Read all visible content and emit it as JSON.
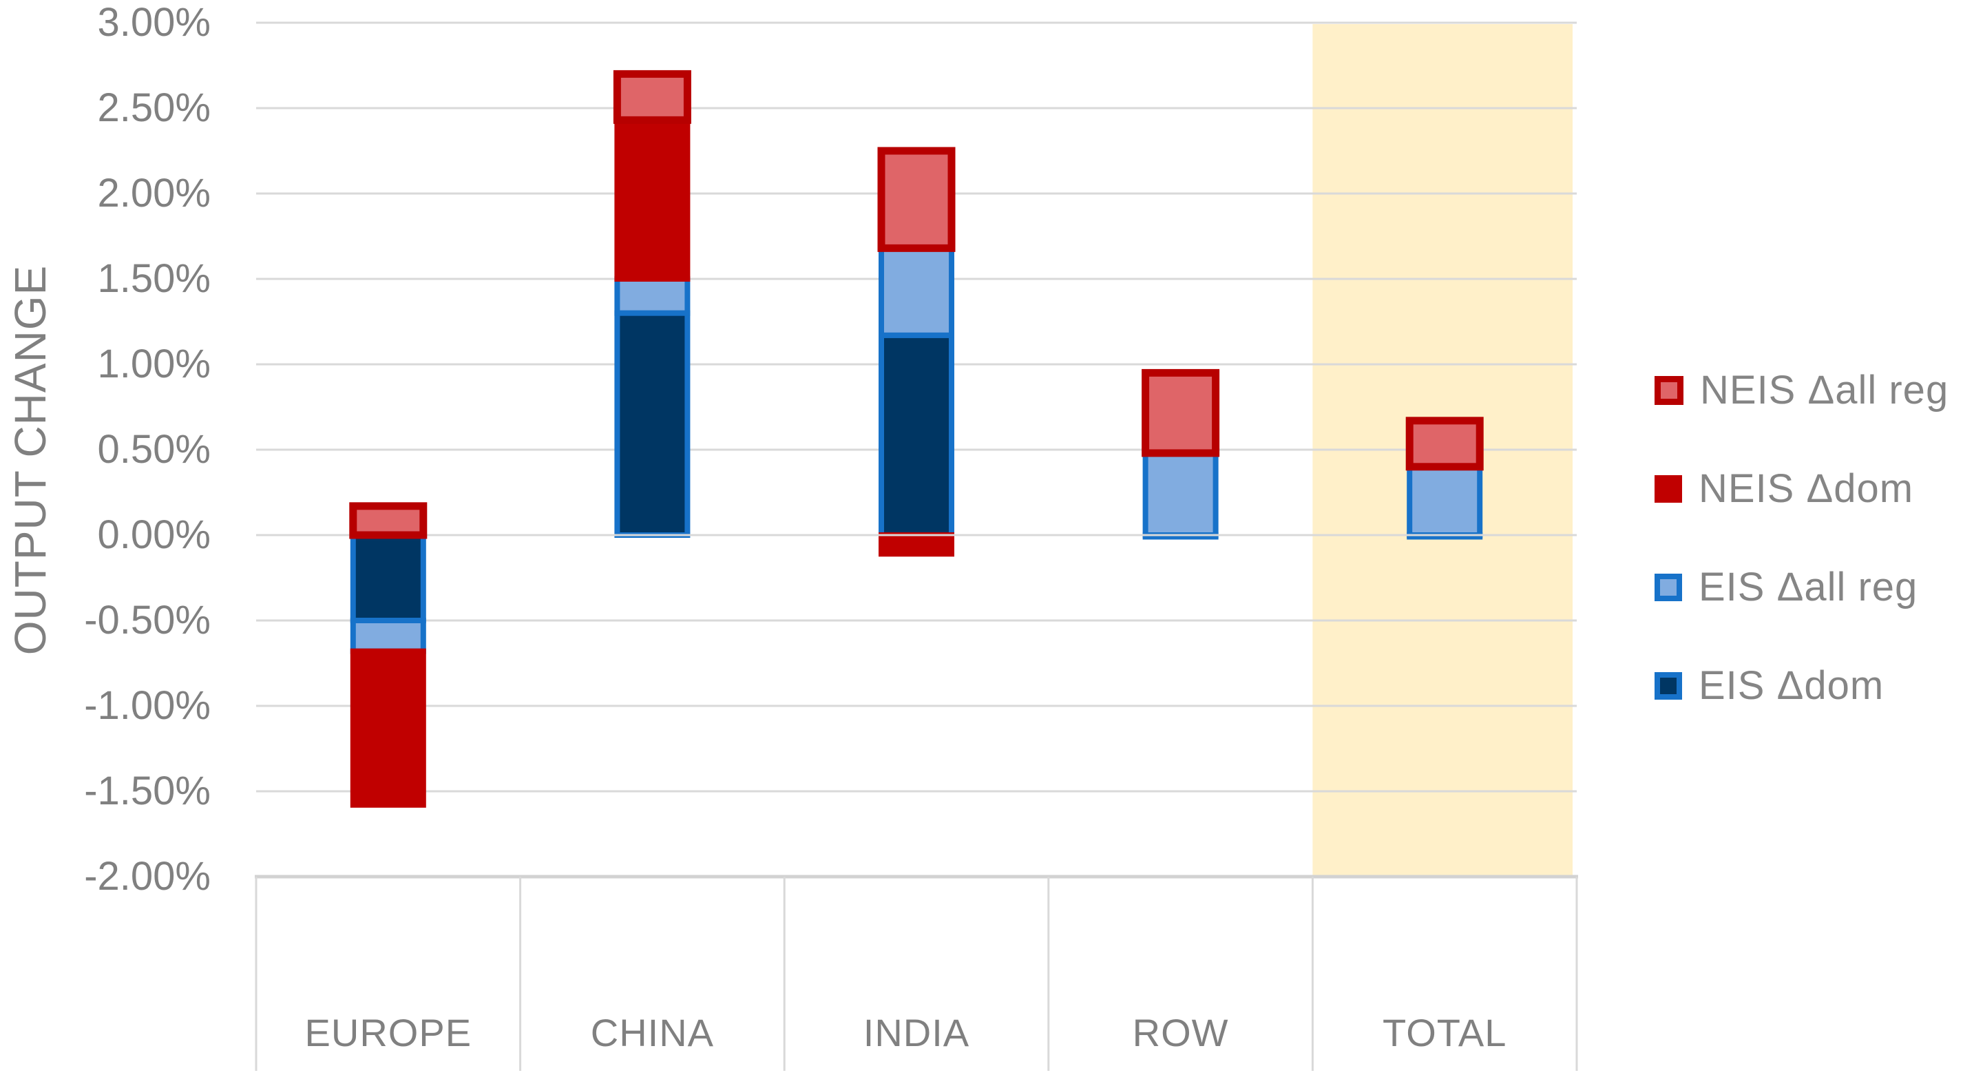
{
  "chart": {
    "y_axis_title": "OUTPUT CHANGE"
  },
  "chart_data": {
    "type": "bar",
    "stacked": true,
    "title": "",
    "xlabel": "",
    "ylabel": "OUTPUT CHANGE",
    "categories": [
      "EUROPE",
      "CHINA",
      "INDIA",
      "ROW",
      "TOTAL"
    ],
    "series": [
      {
        "name": "EIS Δdom",
        "values": [
          -0.5,
          1.3,
          1.17,
          -0.01,
          -0.01
        ],
        "fill": "#003663",
        "stroke": "#1772C9",
        "stroke_width": 8
      },
      {
        "name": "EIS Δall reg",
        "values": [
          -0.18,
          0.2,
          0.51,
          0.48,
          0.4
        ],
        "fill": "#81ACE0",
        "stroke": "#1772C9",
        "stroke_width": 8
      },
      {
        "name": "NEIS Δdom",
        "values": [
          -0.9,
          0.93,
          -0.11,
          0.0,
          0.0
        ],
        "fill": "#C00000",
        "stroke": "#C00000",
        "stroke_width": 8
      },
      {
        "name": "NEIS Δall reg",
        "values": [
          0.17,
          0.27,
          0.57,
          0.47,
          0.27
        ],
        "fill": "#DF6568",
        "stroke": "#B70000",
        "stroke_width": 11
      }
    ],
    "ylim": [
      -2.0,
      3.0
    ],
    "ytick_step": 0.5,
    "ytick_labels": [
      "3.00%",
      "2.50%",
      "2.00%",
      "1.50%",
      "1.00%",
      "0.50%",
      "0.00%",
      "-0.50%",
      "-1.00%",
      "-1.50%",
      "-2.00%"
    ],
    "grid": true,
    "legend_position": "right",
    "legend_order": [
      "NEIS Δall reg",
      "NEIS Δdom",
      "EIS Δall reg",
      "EIS Δdom"
    ],
    "highlight_band": {
      "category": "TOTAL",
      "color": "#FFF0C9"
    },
    "colors": {
      "gridline": "#D9D9D9",
      "axis_band_border": "#D2D2D2",
      "axis_text": "#808080",
      "background": "#FFFFFF"
    }
  }
}
